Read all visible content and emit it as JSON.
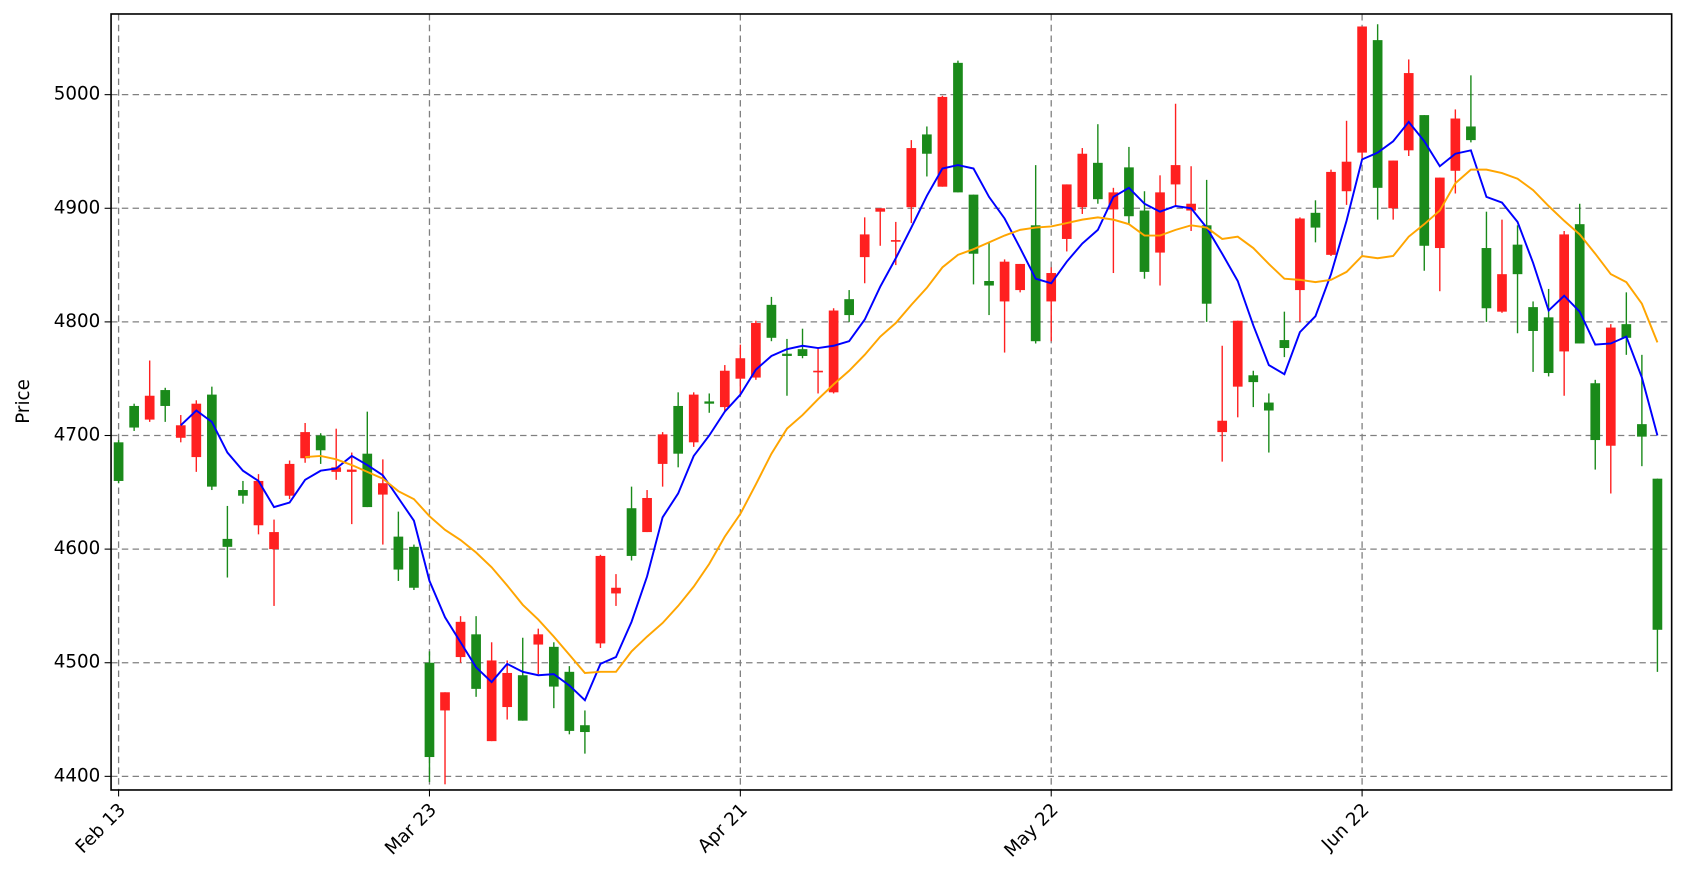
{
  "chart_data": {
    "type": "candlestick",
    "y_label": "Price",
    "categories": [
      "Feb 13",
      null,
      null,
      null,
      null,
      null,
      null,
      null,
      null,
      null,
      null,
      null,
      null,
      null,
      null,
      null,
      null,
      null,
      null,
      null,
      "Mar 23",
      null,
      null,
      null,
      null,
      null,
      null,
      null,
      null,
      null,
      null,
      null,
      null,
      null,
      null,
      null,
      null,
      null,
      null,
      null,
      "Apr 21",
      null,
      null,
      null,
      null,
      null,
      null,
      null,
      null,
      null,
      null,
      null,
      null,
      null,
      null,
      null,
      null,
      null,
      null,
      null,
      "May 22",
      null,
      null,
      null,
      null,
      null,
      null,
      null,
      null,
      null,
      null,
      null,
      null,
      null,
      null,
      null,
      null,
      null,
      null,
      null,
      "Jun 22",
      null,
      null,
      null,
      null,
      null,
      null,
      null,
      null,
      null,
      null,
      null,
      null,
      null,
      null,
      null,
      null,
      null,
      null,
      null
    ],
    "open": [
      4660,
      4707,
      4735,
      4726,
      4709,
      4728,
      4655,
      4602,
      4647,
      4660,
      4615,
      4675,
      4703,
      4687,
      4672,
      4670,
      4637,
      4658,
      4582,
      4566,
      4417,
      4474,
      4536,
      4477,
      4502,
      4491,
      4449,
      4525,
      4479,
      4440,
      4439,
      4594,
      4566,
      4594,
      4645,
      4701,
      4684,
      4736,
      4728,
      4757,
      4768,
      4799,
      4786,
      4770,
      4770,
      4757,
      4810,
      4806,
      4877,
      4900,
      4872,
      4953,
      4948,
      4998,
      4914,
      4860,
      4832,
      4853,
      4851,
      4783,
      4843,
      4921,
      4948,
      4908,
      4914,
      4893,
      4844,
      4914,
      4938,
      4904,
      4816,
      4713,
      4801,
      4747,
      4722,
      4777,
      4891,
      4883,
      4932,
      4941,
      5060,
      4918,
      4942,
      5019,
      4867,
      4927,
      4979,
      4960,
      4812,
      4842,
      4842,
      4792,
      4755,
      4877,
      4781,
      4696,
      4795,
      4786,
      4699,
      4529
    ],
    "high": [
      4696,
      4728,
      4766,
      4742,
      4718,
      4731,
      4743,
      4638,
      4660,
      4666,
      4626,
      4678,
      4711,
      4702,
      4706,
      4685,
      4721,
      4679,
      4633,
      4604,
      4510,
      4474,
      4541,
      4541,
      4518,
      4502,
      4522,
      4530,
      4518,
      4497,
      4458,
      4595,
      4578,
      4655,
      4652,
      4703,
      4738,
      4738,
      4737,
      4762,
      4780,
      4801,
      4822,
      4785,
      4794,
      4777,
      4812,
      4828,
      4892,
      4900,
      4888,
      4960,
      4972,
      4999,
      5030,
      4912,
      4870,
      4855,
      4851,
      4938,
      4848,
      4921,
      4953,
      4974,
      4918,
      4954,
      4915,
      4929,
      4992,
      4937,
      4925,
      4779,
      4801,
      4757,
      4737,
      4809,
      4892,
      4907,
      4934,
      4977,
      5060,
      5062,
      4942,
      5031,
      4982,
      4927,
      4987,
      5017,
      4897,
      4890,
      4885,
      4818,
      4829,
      4880,
      4904,
      4749,
      4798,
      4826,
      4771,
      4662
    ],
    "low": [
      4658,
      4704,
      4712,
      4712,
      4694,
      4668,
      4652,
      4575,
      4640,
      4613,
      4550,
      4644,
      4676,
      4675,
      4661,
      4622,
      4637,
      4604,
      4572,
      4564,
      4395,
      4393,
      4500,
      4470,
      4431,
      4450,
      4449,
      4490,
      4460,
      4437,
      4420,
      4513,
      4550,
      4590,
      4615,
      4655,
      4672,
      4690,
      4720,
      4721,
      4737,
      4749,
      4783,
      4735,
      4768,
      4737,
      4737,
      4800,
      4834,
      4867,
      4850,
      4887,
      4928,
      4919,
      4914,
      4833,
      4806,
      4773,
      4826,
      4781,
      4783,
      4862,
      4895,
      4904,
      4843,
      4886,
      4838,
      4832,
      4902,
      4880,
      4800,
      4677,
      4716,
      4725,
      4685,
      4769,
      4800,
      4870,
      4858,
      4903,
      4944,
      4890,
      4890,
      4946,
      4845,
      4827,
      4913,
      4958,
      4800,
      4808,
      4790,
      4756,
      4752,
      4735,
      4781,
      4670,
      4649,
      4771,
      4673,
      4492
    ],
    "close": [
      4694,
      4726,
      4714,
      4740,
      4698,
      4681,
      4736,
      4609,
      4652,
      4621,
      4600,
      4647,
      4680,
      4700,
      4668,
      4668,
      4684,
      4648,
      4611,
      4602,
      4500,
      4458,
      4505,
      4525,
      4431,
      4461,
      4489,
      4516,
      4514,
      4492,
      4445,
      4517,
      4561,
      4636,
      4615,
      4675,
      4726,
      4694,
      4730,
      4725,
      4750,
      4751,
      4815,
      4772,
      4776,
      4756,
      4738,
      4820,
      4857,
      4897,
      4871,
      4901,
      4965,
      4919,
      5028,
      4912,
      4836,
      4818,
      4828,
      4885,
      4818,
      4873,
      4901,
      4940,
      4899,
      4936,
      4898,
      4861,
      4921,
      4898,
      4885,
      4703,
      4743,
      4753,
      4729,
      4784,
      4828,
      4896,
      4859,
      4915,
      4949,
      5048,
      4900,
      4951,
      4982,
      4865,
      4933,
      4972,
      4865,
      4809,
      4868,
      4813,
      4804,
      4774,
      4886,
      4746,
      4691,
      4798,
      4710,
      4662
    ],
    "up_color": "#1a8a1a",
    "down_color": "#ff2020",
    "lines": [
      {
        "color": "#0000ff",
        "values": [
          null,
          null,
          null,
          null,
          4709,
          4722,
          4712,
          4685,
          4669,
          4660,
          4637,
          4641,
          4661,
          4669,
          4671,
          4682,
          4674,
          4665,
          4645,
          4625,
          4572,
          4540,
          4518,
          4496,
          4483,
          4499,
          4492,
          4489,
          4490,
          4480,
          4467,
          4499,
          4505,
          4536,
          4576,
          4628,
          4649,
          4682,
          4700,
          4721,
          4736,
          4758,
          4770,
          4776,
          4779,
          4777,
          4779,
          4783,
          4802,
          4831,
          4856,
          4883,
          4911,
          4935,
          4938,
          4935,
          4910,
          4891,
          4865,
          4838,
          4834,
          4853,
          4869,
          4881,
          4910,
          4918,
          4904,
          4897,
          4902,
          4900,
          4883,
          4860,
          4836,
          4797,
          4762,
          4754,
          4791,
          4805,
          4842,
          4889,
          4943,
          4949,
          4959,
          4976,
          4959,
          4937,
          4948,
          4951,
          4910,
          4905,
          4888,
          4852,
          4810,
          4823,
          4809,
          4780,
          4781,
          4787,
          4751,
          4700
        ]
      },
      {
        "color": "#ffa500",
        "values": [
          null,
          null,
          null,
          null,
          null,
          null,
          null,
          null,
          null,
          null,
          null,
          null,
          4681,
          4682,
          4679,
          4674,
          4668,
          4662,
          4651,
          4644,
          4629,
          4617,
          4608,
          4597,
          4584,
          4568,
          4551,
          4538,
          4523,
          4507,
          4491,
          4492,
          4492,
          4510,
          4523,
          4535,
          4550,
          4567,
          4587,
          4611,
          4631,
          4657,
          4684,
          4706,
          4718,
          4732,
          4745,
          4757,
          4771,
          4787,
          4799,
          4815,
          4830,
          4848,
          4859,
          4864,
          4870,
          4876,
          4881,
          4883,
          4884,
          4887,
          4890,
          4892,
          4890,
          4886,
          4876,
          4876,
          4881,
          4885,
          4883,
          4873,
          4875,
          4865,
          4851,
          4838,
          4837,
          4835,
          4837,
          4844,
          4858,
          4856,
          4858,
          4875,
          4886,
          4898,
          4922,
          4934,
          4934,
          4931,
          4926,
          4916,
          4902,
          4889,
          4877,
          4860,
          4842,
          4835,
          4816,
          4782
        ]
      }
    ],
    "ylim": [
      4388,
      5071
    ],
    "yticks": [
      4400,
      4500,
      4600,
      4700,
      4800,
      4900,
      5000
    ],
    "grid": true
  }
}
